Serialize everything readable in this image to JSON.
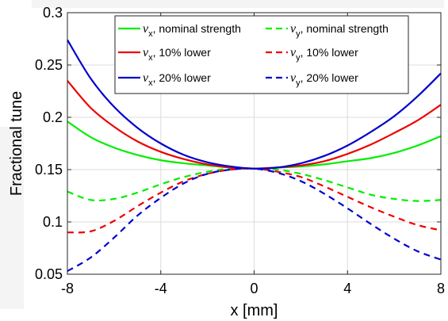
{
  "chart_data": {
    "type": "line",
    "xlabel": "x [mm]",
    "ylabel": "Fractional tune",
    "xlim": [
      -8,
      8
    ],
    "ylim": [
      0.05,
      0.3
    ],
    "xticks": [
      -8,
      -4,
      0,
      4,
      8
    ],
    "yticks": [
      0.05,
      0.1,
      0.15,
      0.2,
      0.25,
      0.3
    ],
    "xtick_labels": [
      "-8",
      "-4",
      "0",
      "4",
      "8"
    ],
    "ytick_labels": [
      "0.05",
      "0.1",
      "0.15",
      "0.2",
      "0.25",
      "0.3"
    ],
    "grid": true,
    "legend_position": "top-right",
    "x": [
      -8,
      -7,
      -6,
      -5,
      -4,
      -3,
      -2,
      -1,
      0,
      1,
      2,
      3,
      4,
      5,
      6,
      7,
      8
    ],
    "series": [
      {
        "name": "νx, nominal strength",
        "symbol": "ν",
        "sub": "x",
        "suffix": ", nominal strength",
        "color": "#00ee00",
        "dash": "solid",
        "values": [
          0.196,
          0.181,
          0.171,
          0.164,
          0.159,
          0.156,
          0.154,
          0.152,
          0.151,
          0.152,
          0.153,
          0.155,
          0.158,
          0.161,
          0.166,
          0.173,
          0.182
        ]
      },
      {
        "name": "νy, nominal strength",
        "symbol": "ν",
        "sub": "y",
        "suffix": ", nominal strength",
        "color": "#00ee00",
        "dash": "dashed",
        "values": [
          0.129,
          0.121,
          0.122,
          0.128,
          0.136,
          0.143,
          0.148,
          0.151,
          0.151,
          0.15,
          0.146,
          0.14,
          0.133,
          0.126,
          0.122,
          0.12,
          0.121
        ]
      },
      {
        "name": "νx, 10% lower",
        "symbol": "ν",
        "sub": "x",
        "suffix": ", 10% lower",
        "color": "#ee0000",
        "dash": "solid",
        "values": [
          0.235,
          0.209,
          0.191,
          0.177,
          0.167,
          0.16,
          0.155,
          0.152,
          0.151,
          0.152,
          0.154,
          0.158,
          0.165,
          0.174,
          0.185,
          0.197,
          0.212
        ]
      },
      {
        "name": "νy, 10% lower",
        "symbol": "ν",
        "sub": "y",
        "suffix": ", 10% lower",
        "color": "#ee0000",
        "dash": "dashed",
        "values": [
          0.09,
          0.091,
          0.101,
          0.115,
          0.128,
          0.139,
          0.146,
          0.15,
          0.151,
          0.148,
          0.143,
          0.134,
          0.124,
          0.114,
          0.105,
          0.097,
          0.092
        ]
      },
      {
        "name": "νx, 20% lower",
        "symbol": "ν",
        "sub": "x",
        "suffix": ", 20% lower",
        "color": "#0000cc",
        "dash": "solid",
        "values": [
          0.274,
          0.237,
          0.21,
          0.19,
          0.175,
          0.164,
          0.157,
          0.153,
          0.151,
          0.152,
          0.156,
          0.163,
          0.173,
          0.186,
          0.201,
          0.22,
          0.242
        ]
      },
      {
        "name": "νy, 20% lower",
        "symbol": "ν",
        "sub": "y",
        "suffix": ", 20% lower",
        "color": "#0000cc",
        "dash": "dashed",
        "values": [
          0.053,
          0.066,
          0.085,
          0.106,
          0.123,
          0.137,
          0.146,
          0.15,
          0.151,
          0.147,
          0.139,
          0.127,
          0.113,
          0.098,
          0.084,
          0.072,
          0.064
        ]
      }
    ],
    "legend_order": [
      0,
      1,
      2,
      3,
      4,
      5
    ]
  }
}
